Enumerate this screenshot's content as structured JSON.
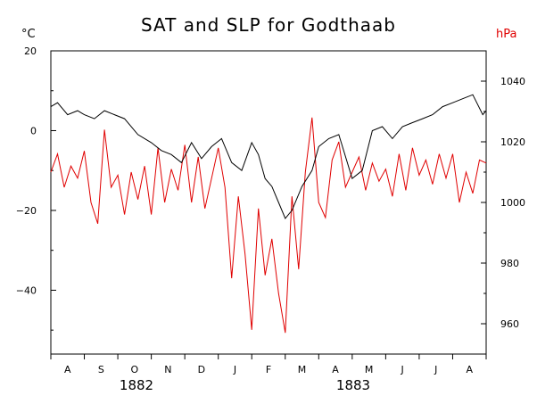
{
  "chart_data": {
    "type": "line",
    "title": "SAT and SLP for Godthaab",
    "left_axis": {
      "unit": "°C",
      "ylim": [
        -56,
        20
      ],
      "ticks": [
        20,
        0,
        -20,
        -40
      ],
      "tick_labels": [
        "20",
        "0",
        "−20",
        "−40"
      ]
    },
    "right_axis": {
      "unit": "hPa",
      "ylim": [
        950,
        1050
      ],
      "ticks": [
        1040,
        1020,
        1000,
        980,
        960
      ],
      "tick_labels": [
        "1040",
        "1020",
        "1000",
        "980",
        "960"
      ]
    },
    "x_axis": {
      "months": [
        "A",
        "S",
        "O",
        "N",
        "D",
        "J",
        "F",
        "M",
        "A",
        "M",
        "J",
        "J",
        "A"
      ],
      "years": [
        "1882",
        "1883"
      ]
    },
    "colors": {
      "sat": "#000000",
      "slp": "#e00000"
    },
    "series": [
      {
        "axis": "left",
        "color": "#000000",
        "x": [
          0,
          0.2,
          0.5,
          0.8,
          1.0,
          1.3,
          1.6,
          1.9,
          2.2,
          2.6,
          3.0,
          3.3,
          3.6,
          3.9,
          4.2,
          4.5,
          4.8,
          5.1,
          5.4,
          5.7,
          6.0,
          6.2,
          6.4,
          6.6,
          6.8,
          7.0,
          7.2,
          7.5,
          7.8,
          8.0,
          8.3,
          8.6,
          9.0,
          9.3,
          9.6,
          9.9,
          10.2,
          10.5,
          10.8,
          11.1,
          11.4,
          11.7,
          12.0,
          12.3,
          12.6,
          12.9,
          13.0
        ],
        "values": [
          6,
          7,
          4,
          5,
          4,
          3,
          5,
          4,
          3,
          -1,
          -3,
          -5,
          -6,
          -8,
          -3,
          -7,
          -4,
          -2,
          -8,
          -10,
          -3,
          -6,
          -12,
          -14,
          -18,
          -22,
          -20,
          -14,
          -10,
          -4,
          -2,
          -1,
          -12,
          -10,
          0,
          1,
          -2,
          1,
          2,
          3,
          4,
          6,
          7,
          8,
          9,
          4,
          5
        ]
      },
      {
        "axis": "right",
        "color": "#e00000",
        "x": [
          0,
          0.2,
          0.4,
          0.6,
          0.8,
          1.0,
          1.2,
          1.4,
          1.6,
          1.8,
          2.0,
          2.2,
          2.4,
          2.6,
          2.8,
          3.0,
          3.2,
          3.4,
          3.6,
          3.8,
          4.0,
          4.2,
          4.4,
          4.6,
          4.8,
          5.0,
          5.2,
          5.4,
          5.6,
          5.8,
          6.0,
          6.2,
          6.4,
          6.6,
          6.8,
          7.0,
          7.2,
          7.4,
          7.6,
          7.8,
          8.0,
          8.2,
          8.4,
          8.6,
          8.8,
          9.0,
          9.2,
          9.4,
          9.6,
          9.8,
          10.0,
          10.2,
          10.4,
          10.6,
          10.8,
          11.0,
          11.2,
          11.4,
          11.6,
          11.8,
          12.0,
          12.2,
          12.4,
          12.6,
          12.8,
          13.0
        ],
        "values": [
          1010,
          1016,
          1005,
          1012,
          1008,
          1017,
          1000,
          993,
          1024,
          1005,
          1009,
          996,
          1010,
          1001,
          1012,
          996,
          1018,
          1000,
          1011,
          1004,
          1019,
          1000,
          1015,
          998,
          1008,
          1018,
          1005,
          975,
          1002,
          983,
          958,
          998,
          976,
          988,
          970,
          957,
          1002,
          978,
          1010,
          1028,
          1000,
          995,
          1014,
          1020,
          1005,
          1010,
          1015,
          1004,
          1013,
          1007,
          1011,
          1002,
          1016,
          1004,
          1018,
          1009,
          1014,
          1006,
          1016,
          1008,
          1016,
          1000,
          1010,
          1003,
          1014,
          1013
        ]
      }
    ]
  }
}
